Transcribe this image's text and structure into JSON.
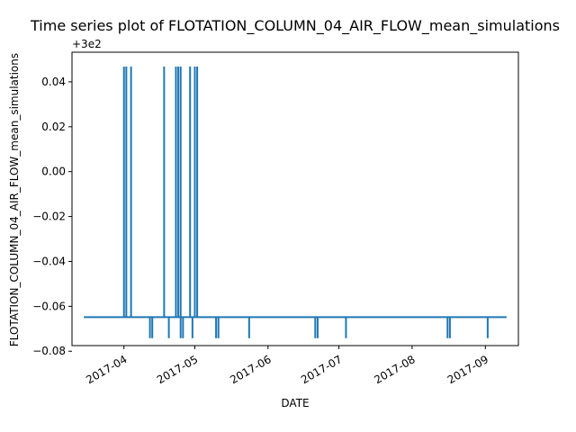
{
  "chart_data": {
    "type": "line",
    "title": "Time series plot of FLOTATION_COLUMN_04_AIR_FLOW_mean_simulations",
    "xlabel": "DATE",
    "ylabel": "FLOTATION_COLUMN_04_AIR_FLOW_mean_simulations",
    "offset_text": "+3e2",
    "x_range": [
      "2017-03-10",
      "2017-09-15"
    ],
    "y_range": [
      -0.0775,
      0.0532
    ],
    "x_ticks": [
      {
        "date": "2017-04-01",
        "label": "2017-04"
      },
      {
        "date": "2017-05-01",
        "label": "2017-05"
      },
      {
        "date": "2017-06-01",
        "label": "2017-06"
      },
      {
        "date": "2017-07-01",
        "label": "2017-07"
      },
      {
        "date": "2017-08-01",
        "label": "2017-08"
      },
      {
        "date": "2017-09-01",
        "label": "2017-09"
      }
    ],
    "y_ticks": [
      {
        "value": 0.04,
        "label": "0.04"
      },
      {
        "value": 0.02,
        "label": "0.02"
      },
      {
        "value": 0.0,
        "label": "0.00"
      },
      {
        "value": -0.02,
        "label": "−0.02"
      },
      {
        "value": -0.04,
        "label": "−0.04"
      },
      {
        "value": -0.06,
        "label": "−0.06"
      },
      {
        "value": -0.08,
        "label": "−0.08"
      }
    ],
    "grid": false,
    "line_color": "#1f77b4",
    "baseline_value": -0.0648,
    "start_date": "2017-03-15",
    "end_date": "2017-09-10",
    "spikes": [
      {
        "date": "2017-04-01",
        "value": 0.0468
      },
      {
        "date": "2017-04-02",
        "value": 0.0468
      },
      {
        "date": "2017-04-04",
        "value": 0.0468
      },
      {
        "date": "2017-04-12",
        "value": -0.0742
      },
      {
        "date": "2017-04-13",
        "value": -0.0742
      },
      {
        "date": "2017-04-18",
        "value": 0.0468
      },
      {
        "date": "2017-04-20",
        "value": -0.0742
      },
      {
        "date": "2017-04-23",
        "value": 0.0468
      },
      {
        "date": "2017-04-24",
        "value": 0.0468
      },
      {
        "date": "2017-04-25",
        "value": 0.0468
      },
      {
        "date": "2017-04-25",
        "value": -0.0742
      },
      {
        "date": "2017-04-26",
        "value": -0.0742
      },
      {
        "date": "2017-04-29",
        "value": 0.0468
      },
      {
        "date": "2017-04-30",
        "value": -0.0742
      },
      {
        "date": "2017-05-01",
        "value": 0.0468
      },
      {
        "date": "2017-05-02",
        "value": 0.0468
      },
      {
        "date": "2017-05-10",
        "value": -0.0742
      },
      {
        "date": "2017-05-11",
        "value": -0.0742
      },
      {
        "date": "2017-05-24",
        "value": -0.0742
      },
      {
        "date": "2017-06-21",
        "value": -0.0742
      },
      {
        "date": "2017-06-22",
        "value": -0.0742
      },
      {
        "date": "2017-07-04",
        "value": -0.0742
      },
      {
        "date": "2017-08-16",
        "value": -0.0742
      },
      {
        "date": "2017-08-17",
        "value": -0.0742
      },
      {
        "date": "2017-09-02",
        "value": -0.0742
      }
    ]
  }
}
